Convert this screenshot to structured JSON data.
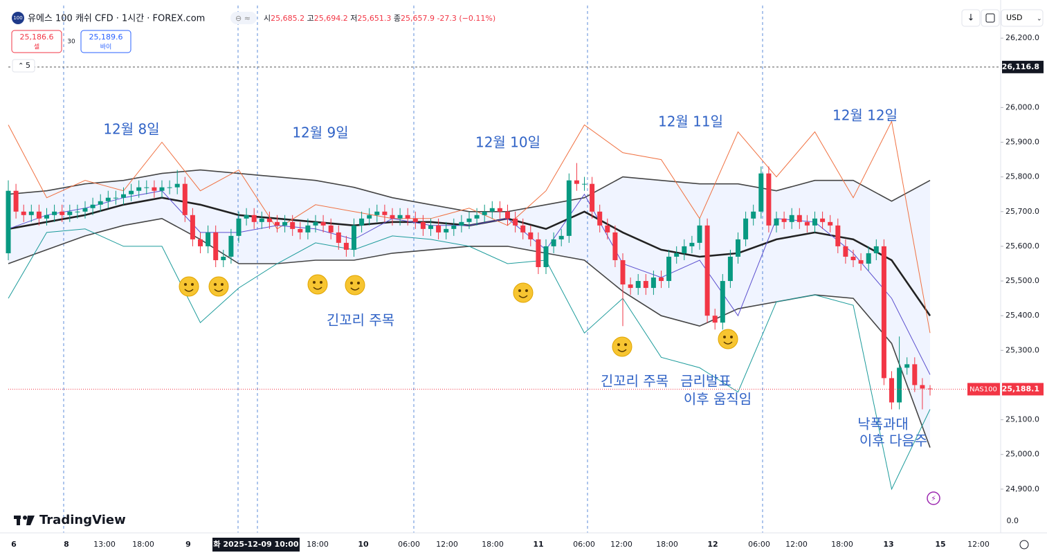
{
  "header": {
    "symbol_icon": "100",
    "title": "유에스 100 캐쉬 CFD · 1시간 · FOREX.com",
    "ohlc": [
      {
        "key": "시",
        "value": "25,685.2"
      },
      {
        "key": "고",
        "value": "25,694.2"
      },
      {
        "key": "저",
        "value": "25,651.3"
      },
      {
        "key": "종",
        "value": "25,657.9"
      }
    ],
    "change": "-27.3 (−0.11%)",
    "sell_price": "25,186.6",
    "sell_label": "셀",
    "spread": "30",
    "buy_price": "25,189.6",
    "buy_label": "바이",
    "indicator_count": "5",
    "currency": "USD",
    "logo": "TradingView"
  },
  "chart_data": {
    "type": "candlestick",
    "up_color": "#089981",
    "down_color": "#f23645",
    "ylim": [
      24780,
      26290
    ],
    "yticks": [
      {
        "value": 26200,
        "label": "26,200.0"
      },
      {
        "value": 26000,
        "label": "26,000.0"
      },
      {
        "value": 25900,
        "label": "25,900.0"
      },
      {
        "value": 25800,
        "label": "25,800.0"
      },
      {
        "value": 25700,
        "label": "25,700.0"
      },
      {
        "value": 25600,
        "label": "25,600.0"
      },
      {
        "value": 25500,
        "label": "25,500.0"
      },
      {
        "value": 25400,
        "label": "25,400.0"
      },
      {
        "value": 25300,
        "label": "25,300.0"
      },
      {
        "value": 25100,
        "label": "25,100.0"
      },
      {
        "value": 25000,
        "label": "25,000.0"
      },
      {
        "value": 24900,
        "label": "24,900.0"
      }
    ],
    "lower_pane_label": "0.0",
    "horizontal_line": {
      "value": 26116.8,
      "label": "26,116.8"
    },
    "last_price": {
      "symbol": "NAS100",
      "label": "25,188.1"
    },
    "x_labels": [
      "6",
      "8",
      "13:00",
      "18:00",
      "9",
      "18:00",
      "10",
      "06:00",
      "12:00",
      "18:00",
      "11",
      "06:00",
      "12:00",
      "18:00",
      "12",
      "06:00",
      "12:00",
      "18:00",
      "13",
      "15",
      "12:00"
    ],
    "crosshair_label": "화 2025-12-09 10:00",
    "open": [
      25580,
      25760,
      25700,
      25690,
      25700,
      25680,
      25690,
      25700,
      25690,
      25700,
      25700,
      25710,
      25720,
      25730,
      25740,
      25740,
      25750,
      25760,
      25770,
      25770,
      25760,
      25770,
      25770,
      25780,
      25690,
      25620,
      25600,
      25640,
      25560,
      25570,
      25630,
      25680,
      25690,
      25670,
      25680,
      25670,
      25660,
      25670,
      25650,
      25640,
      25660,
      25670,
      25660,
      25640,
      25610,
      25590,
      25660,
      25680,
      25690,
      25700,
      25690,
      25680,
      25690,
      25680,
      25670,
      25650,
      25660,
      25640,
      25650,
      25660,
      25670,
      25680,
      25690,
      25700,
      25710,
      25700,
      25680,
      25660,
      25640,
      25620,
      25540,
      25600,
      25620,
      25630,
      25790,
      25780,
      25780,
      25700,
      25660,
      25640,
      25560,
      25490,
      25480,
      25500,
      25480,
      25510,
      25500,
      25570,
      25580,
      25600,
      25610,
      25660,
      25400,
      25380,
      25500,
      25570,
      25620,
      25680,
      25700,
      25810,
      25660,
      25680,
      25670,
      25690,
      25670,
      25660,
      25680,
      25670,
      25660,
      25600,
      25570,
      25560,
      25550,
      25580,
      25600,
      25220,
      25150,
      25250,
      25260,
      25200,
      25190
    ],
    "high": [
      25790,
      25780,
      25720,
      25720,
      25720,
      25710,
      25720,
      25720,
      25720,
      25720,
      25730,
      25740,
      25750,
      25760,
      25760,
      25770,
      25780,
      25790,
      25790,
      25790,
      25790,
      25790,
      25820,
      25800,
      25710,
      25640,
      25660,
      25660,
      25590,
      25650,
      25700,
      25710,
      25710,
      25700,
      25700,
      25690,
      25690,
      25690,
      25670,
      25680,
      25690,
      25690,
      25680,
      25660,
      25630,
      25680,
      25700,
      25710,
      25720,
      25720,
      25710,
      25710,
      25710,
      25700,
      25690,
      25680,
      25680,
      25670,
      25680,
      25690,
      25700,
      25710,
      25720,
      25730,
      25730,
      25720,
      25700,
      25680,
      25660,
      25640,
      25620,
      25640,
      25650,
      25810,
      25840,
      25800,
      25800,
      25720,
      25680,
      25660,
      25580,
      25510,
      25520,
      25520,
      25530,
      25530,
      25590,
      25600,
      25620,
      25630,
      25680,
      25680,
      25420,
      25520,
      25590,
      25640,
      25700,
      25720,
      25830,
      25830,
      25700,
      25700,
      25710,
      25710,
      25690,
      25700,
      25700,
      25690,
      25680,
      25620,
      25590,
      25580,
      25600,
      25620,
      25620,
      25240,
      25340,
      25280,
      25280,
      25220,
      25200
    ],
    "low": [
      25560,
      25680,
      25670,
      25670,
      25660,
      25660,
      25670,
      25670,
      25670,
      25680,
      25680,
      25690,
      25700,
      25710,
      25720,
      25720,
      25730,
      25740,
      25750,
      25740,
      25740,
      25750,
      25750,
      25670,
      25600,
      25580,
      25580,
      25540,
      25540,
      25550,
      25610,
      25660,
      25650,
      25650,
      25650,
      25640,
      25640,
      25630,
      25620,
      25620,
      25640,
      25640,
      25620,
      25590,
      25570,
      25570,
      25640,
      25660,
      25670,
      25670,
      25660,
      25660,
      25660,
      25650,
      25630,
      25630,
      25620,
      25620,
      25630,
      25640,
      25650,
      25660,
      25670,
      25680,
      25680,
      25660,
      25640,
      25620,
      25600,
      25520,
      25520,
      25580,
      25600,
      25610,
      25760,
      25760,
      25680,
      25640,
      25620,
      25540,
      25370,
      25460,
      25460,
      25460,
      25460,
      25480,
      25480,
      25550,
      25560,
      25580,
      25590,
      25380,
      25360,
      25360,
      25480,
      25550,
      25600,
      25660,
      25680,
      25640,
      25640,
      25650,
      25650,
      25650,
      25640,
      25640,
      25650,
      25640,
      25580,
      25550,
      25540,
      25530,
      25530,
      25560,
      25200,
      25130,
      25130,
      25230,
      25180,
      25130,
      25170
    ],
    "close": [
      25760,
      25700,
      25690,
      25700,
      25680,
      25690,
      25700,
      25690,
      25700,
      25700,
      25710,
      25720,
      25730,
      25740,
      25740,
      25750,
      25760,
      25770,
      25770,
      25760,
      25770,
      25770,
      25780,
      25690,
      25620,
      25600,
      25640,
      25560,
      25570,
      25630,
      25680,
      25690,
      25670,
      25680,
      25670,
      25660,
      25670,
      25650,
      25640,
      25660,
      25670,
      25660,
      25640,
      25610,
      25590,
      25660,
      25680,
      25690,
      25700,
      25690,
      25680,
      25690,
      25680,
      25670,
      25650,
      25660,
      25640,
      25650,
      25660,
      25670,
      25680,
      25690,
      25700,
      25710,
      25700,
      25680,
      25660,
      25640,
      25620,
      25540,
      25600,
      25620,
      25630,
      25790,
      25780,
      25780,
      25700,
      25660,
      25640,
      25560,
      25490,
      25480,
      25500,
      25480,
      25510,
      25500,
      25570,
      25580,
      25600,
      25610,
      25660,
      25400,
      25380,
      25500,
      25570,
      25620,
      25680,
      25700,
      25810,
      25660,
      25680,
      25670,
      25690,
      25670,
      25660,
      25680,
      25670,
      25660,
      25600,
      25570,
      25560,
      25550,
      25580,
      25600,
      25220,
      25150,
      25250,
      25260,
      25200,
      25190,
      25188.1
    ],
    "line_x": [
      0,
      5,
      10,
      15,
      20,
      25,
      30,
      35,
      40,
      45,
      50,
      55,
      60,
      65,
      70,
      75,
      80,
      85,
      90,
      95,
      100,
      105,
      110,
      115,
      120
    ],
    "series": [
      {
        "color": "#222222",
        "width": 2.6,
        "values": [
          25650,
          25670,
          25690,
          25720,
          25740,
          25720,
          25690,
          25680,
          25670,
          25660,
          25670,
          25670,
          25660,
          25680,
          25650,
          25700,
          25640,
          25590,
          25570,
          25580,
          25620,
          25640,
          25620,
          25560,
          25400
        ]
      },
      {
        "color": "#444444",
        "width": 1.6,
        "values": [
          25750,
          25760,
          25780,
          25790,
          25810,
          25820,
          25810,
          25800,
          25790,
          25770,
          25740,
          25720,
          25700,
          25700,
          25720,
          25740,
          25800,
          25790,
          25780,
          25780,
          25760,
          25790,
          25790,
          25730,
          25790
        ]
      },
      {
        "color": "#444444",
        "width": 1.6,
        "values": [
          25550,
          25590,
          25630,
          25660,
          25680,
          25620,
          25550,
          25550,
          25560,
          25560,
          25580,
          25590,
          25600,
          25600,
          25580,
          25560,
          25470,
          25400,
          25370,
          25420,
          25440,
          25460,
          25450,
          25320,
          25020
        ]
      },
      {
        "color": "#f07040",
        "width": 1,
        "values": [
          25950,
          25740,
          25790,
          25760,
          25900,
          25760,
          25820,
          25650,
          25720,
          25700,
          25680,
          25680,
          25710,
          25660,
          25760,
          25950,
          25870,
          25850,
          25680,
          25930,
          25800,
          25930,
          25740,
          25960,
          25350
        ]
      },
      {
        "color": "#1a9a9a",
        "width": 1,
        "values": [
          25450,
          25640,
          25650,
          25600,
          25600,
          25380,
          25480,
          25550,
          25610,
          25590,
          25630,
          25620,
          25600,
          25550,
          25560,
          25350,
          25450,
          25280,
          25250,
          25180,
          25440,
          25460,
          25430,
          24900,
          25130
        ]
      },
      {
        "color": "#5b4fcf",
        "width": 1,
        "values": [
          25650,
          25690,
          25710,
          25740,
          25760,
          25640,
          25640,
          25660,
          25650,
          25620,
          25680,
          25660,
          25660,
          25680,
          25590,
          25750,
          25550,
          25510,
          25560,
          25400,
          25680,
          25670,
          25580,
          25450,
          25230
        ]
      }
    ],
    "annotations": [
      "12월 8일",
      "12월 9일",
      "12월 10일",
      "12월 11일",
      "12월 12일",
      "긴꼬리 주목",
      "긴꼬리 주목",
      "금리발표",
      "이후 움직임",
      "낙폭과대",
      "이후 다음주"
    ]
  }
}
